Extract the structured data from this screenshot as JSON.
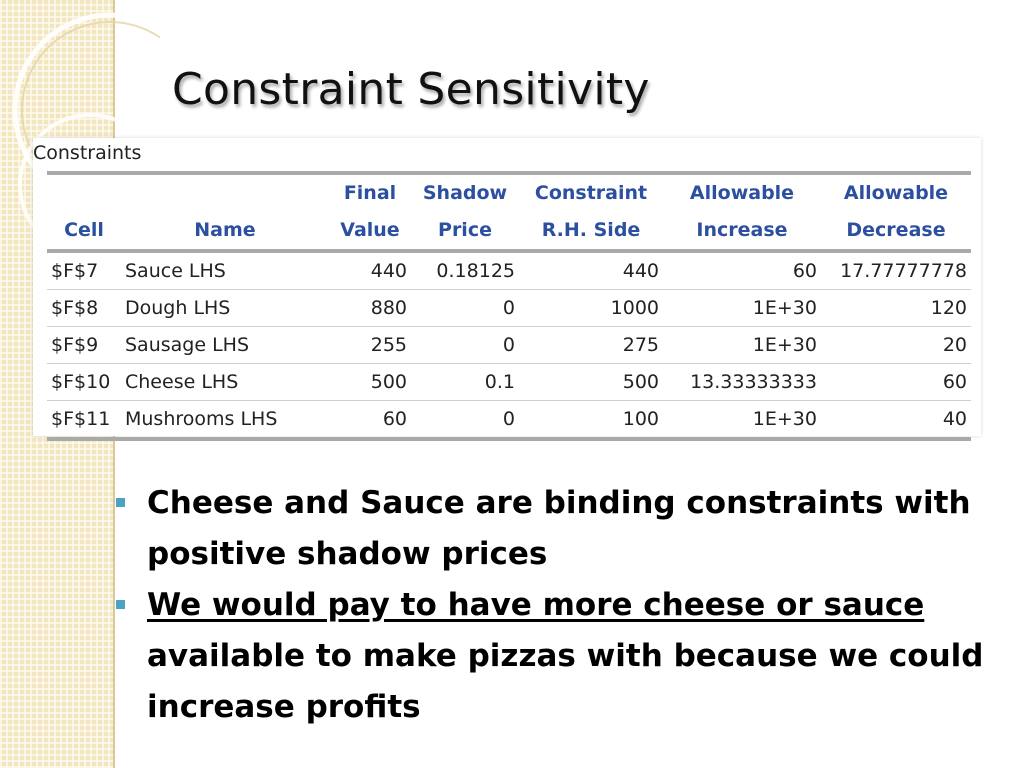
{
  "slide": {
    "title": "Constraint Sensitivity",
    "table_label": "Constraints"
  },
  "table": {
    "headers_top": [
      "",
      "",
      "Final",
      "Shadow",
      "Constraint",
      "Allowable",
      "Allowable"
    ],
    "headers_bottom": [
      "Cell",
      "Name",
      "Value",
      "Price",
      "R.H. Side",
      "Increase",
      "Decrease"
    ],
    "rows": [
      [
        "$F$7",
        "Sauce LHS",
        "440",
        "0.18125",
        "440",
        "60",
        "17.77777778"
      ],
      [
        "$F$8",
        "Dough LHS",
        "880",
        "0",
        "1000",
        "1E+30",
        "120"
      ],
      [
        "$F$9",
        "Sausage LHS",
        "255",
        "0",
        "275",
        "1E+30",
        "20"
      ],
      [
        "$F$10",
        "Cheese LHS",
        "500",
        "0.1",
        "500",
        "13.33333333",
        "60"
      ],
      [
        "$F$11",
        "Mushrooms LHS",
        "60",
        "0",
        "100",
        "1E+30",
        "40"
      ]
    ]
  },
  "bullets": {
    "b1": "Cheese and Sauce are binding constraints with positive shadow prices",
    "b2_underlined": "We would pay to have more cheese or sauce ",
    "b2_rest": "available to make pizzas with because we could increase profits"
  },
  "colors": {
    "header_blue": "#2c4fa0",
    "bullet_marker": "#4aa3c4",
    "left_band": "#f3e6bf"
  }
}
